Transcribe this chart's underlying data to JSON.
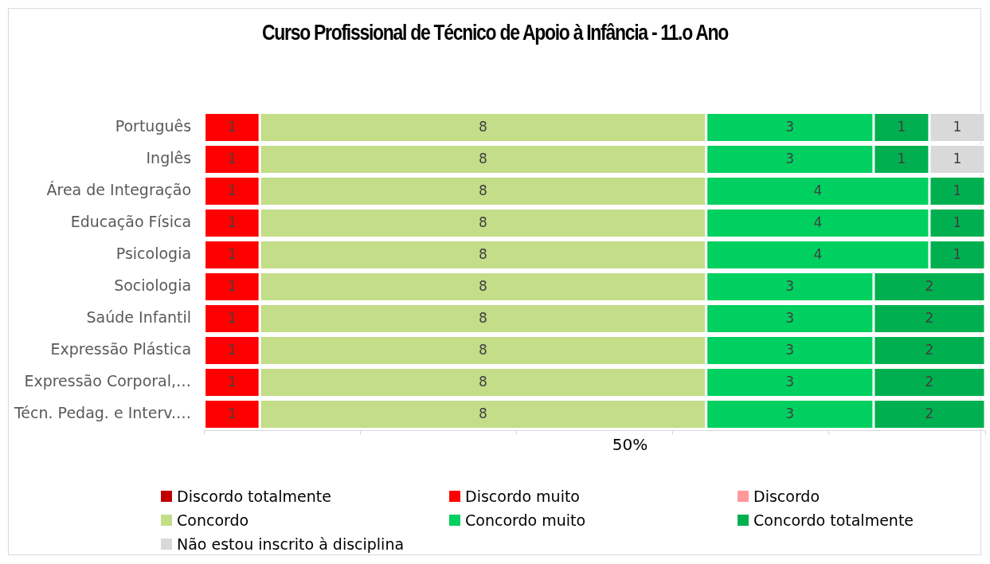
{
  "chart_data": {
    "type": "bar",
    "orientation": "horizontal",
    "stacked": true,
    "title": "Curso Profissional de Técnico de Apoio à Infância - 11.o Ano",
    "xlabel": "50%",
    "categories": [
      "Português",
      "Inglês",
      "Área de Integração",
      "Educação Física",
      "Psicologia",
      "Sociologia",
      "Saúde Infantil",
      "Expressão Plástica",
      "Expressão Corporal,…",
      "Técn. Pedag. e Interv.…"
    ],
    "series": [
      {
        "name": "Discordo totalmente",
        "color": "#c00000",
        "values": [
          null,
          null,
          null,
          null,
          null,
          null,
          null,
          null,
          null,
          null
        ]
      },
      {
        "name": "Discordo muito",
        "color": "#ff0000",
        "values": [
          1,
          1,
          1,
          1,
          1,
          1,
          1,
          1,
          1,
          1
        ]
      },
      {
        "name": "Discordo",
        "color": "#ff9999",
        "values": [
          null,
          null,
          null,
          null,
          null,
          null,
          null,
          null,
          null,
          null
        ]
      },
      {
        "name": "Concordo",
        "color": "#c4dd88",
        "values": [
          8,
          8,
          8,
          8,
          8,
          8,
          8,
          8,
          8,
          8
        ]
      },
      {
        "name": "Concordo muito",
        "color": "#00d060",
        "values": [
          3,
          3,
          4,
          4,
          4,
          3,
          3,
          3,
          3,
          3
        ]
      },
      {
        "name": "Concordo totalmente",
        "color": "#00b050",
        "values": [
          1,
          1,
          1,
          1,
          1,
          2,
          2,
          2,
          2,
          2
        ]
      },
      {
        "name": "Não estou inscrito à disciplina",
        "color": "#d9d9d9",
        "values": [
          1,
          1,
          null,
          null,
          null,
          null,
          null,
          null,
          null,
          null
        ]
      }
    ],
    "tick_labels": "y",
    "grid": false,
    "legend": "bottom",
    "data_labels": true
  }
}
